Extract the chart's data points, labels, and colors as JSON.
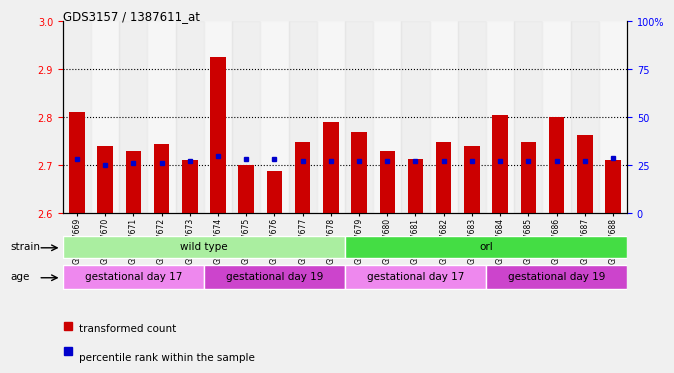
{
  "title": "GDS3157 / 1387611_at",
  "samples": [
    "GSM187669",
    "GSM187670",
    "GSM187671",
    "GSM187672",
    "GSM187673",
    "GSM187674",
    "GSM187675",
    "GSM187676",
    "GSM187677",
    "GSM187678",
    "GSM187679",
    "GSM187680",
    "GSM187681",
    "GSM187682",
    "GSM187683",
    "GSM187684",
    "GSM187685",
    "GSM187686",
    "GSM187687",
    "GSM187688"
  ],
  "bar_values": [
    2.81,
    2.74,
    2.73,
    2.745,
    2.71,
    2.925,
    2.7,
    2.688,
    2.748,
    2.79,
    2.77,
    2.73,
    2.712,
    2.748,
    2.74,
    2.805,
    2.748,
    2.8,
    2.762,
    2.71
  ],
  "percentile_values": [
    28,
    25,
    26,
    26,
    27,
    30,
    28,
    28,
    27,
    27,
    27,
    27,
    27,
    27,
    27,
    27,
    27,
    27,
    27,
    29
  ],
  "bar_color": "#cc0000",
  "percentile_color": "#0000cc",
  "ylim_left": [
    2.6,
    3.0
  ],
  "ylim_right": [
    0,
    100
  ],
  "yticks_left": [
    2.6,
    2.7,
    2.8,
    2.9,
    3.0
  ],
  "yticks_right": [
    0,
    25,
    50,
    75,
    100
  ],
  "grid_values": [
    2.7,
    2.8,
    2.9
  ],
  "bar_width": 0.55,
  "strain_labels": [
    {
      "text": "wild type",
      "start": 0,
      "end": 9,
      "color": "#aaeea0"
    },
    {
      "text": "orl",
      "start": 10,
      "end": 19,
      "color": "#44dd44"
    }
  ],
  "age_labels": [
    {
      "text": "gestational day 17",
      "start": 0,
      "end": 4,
      "color": "#ee88ee"
    },
    {
      "text": "gestational day 19",
      "start": 5,
      "end": 9,
      "color": "#cc44cc"
    },
    {
      "text": "gestational day 17",
      "start": 10,
      "end": 14,
      "color": "#ee88ee"
    },
    {
      "text": "gestational day 19",
      "start": 15,
      "end": 19,
      "color": "#cc44cc"
    }
  ],
  "legend_items": [
    {
      "label": "transformed count",
      "color": "#cc0000"
    },
    {
      "label": "percentile rank within the sample",
      "color": "#0000cc"
    }
  ],
  "bg_color": "#f0f0f0",
  "plot_bg": "#ffffff",
  "tick_bg_even": "#e0e0e0",
  "tick_bg_odd": "#eeeeee"
}
